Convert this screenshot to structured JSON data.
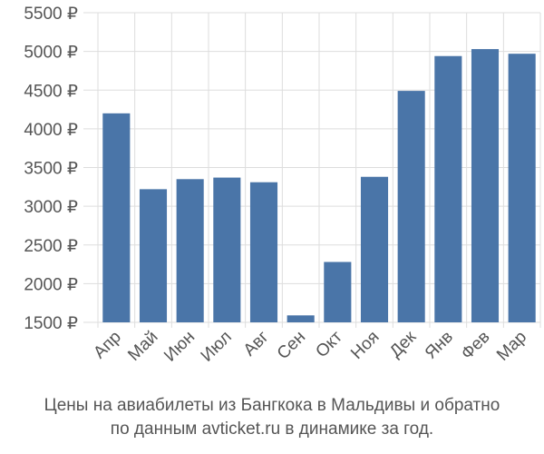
{
  "chart_data": {
    "type": "bar",
    "categories": [
      "Апр",
      "Май",
      "Июн",
      "Июл",
      "Авг",
      "Сен",
      "Окт",
      "Ноя",
      "Дек",
      "Янв",
      "Фев",
      "Мар"
    ],
    "values": [
      4200,
      3220,
      3350,
      3370,
      3310,
      1590,
      2280,
      3380,
      4490,
      4940,
      5030,
      4970
    ],
    "y_ticks": [
      "5500 ₽",
      "5000 ₽",
      "4500 ₽",
      "4000 ₽",
      "3500 ₽",
      "3000 ₽",
      "2500 ₽",
      "2000 ₽",
      "1500 ₽"
    ],
    "ylim": [
      1500,
      5500
    ],
    "grid": true,
    "bar_color": "#4a75a8",
    "grid_color": "#dddddd"
  },
  "caption": {
    "line1": "Цены на авиабилеты из Бангкока в Мальдивы и обратно",
    "line2": "по данным avticket.ru в динамике за год."
  }
}
